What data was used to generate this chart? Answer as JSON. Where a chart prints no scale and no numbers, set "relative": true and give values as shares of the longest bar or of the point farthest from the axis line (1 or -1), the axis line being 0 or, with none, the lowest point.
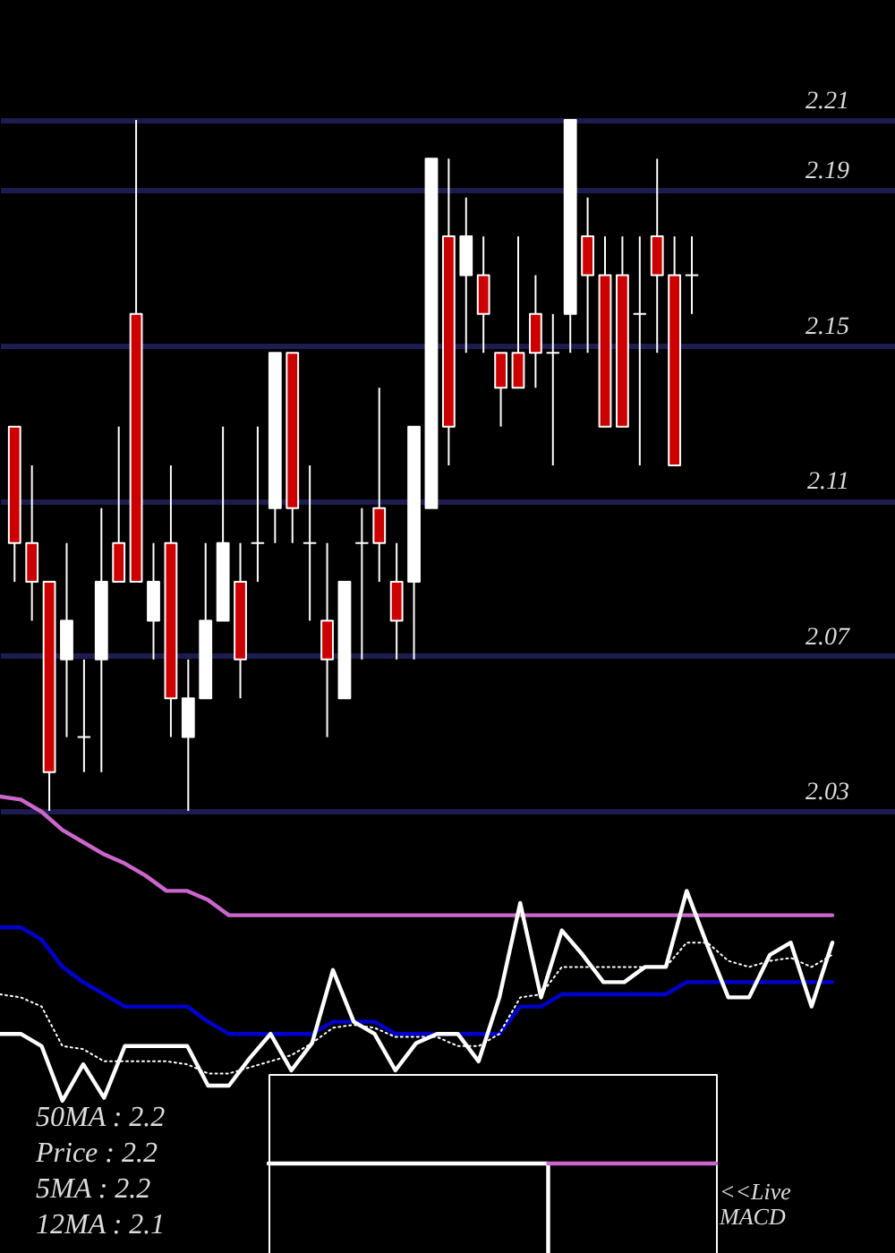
{
  "chart_data": [
    {
      "type": "candlestick",
      "categories": [
        null,
        null,
        null,
        null,
        null,
        null,
        null,
        null,
        null,
        null,
        null,
        null,
        null,
        null,
        null,
        null,
        null,
        null,
        null,
        null,
        null,
        null,
        null,
        null,
        null,
        null,
        null,
        null,
        null,
        null,
        null,
        null,
        null,
        null,
        null,
        null,
        null,
        null,
        null,
        null
      ],
      "ohlc": [
        [
          2.129,
          2.129,
          2.089,
          2.099
        ],
        [
          2.099,
          2.119,
          2.079,
          2.089
        ],
        [
          2.089,
          2.089,
          2.03,
          2.04
        ],
        [
          2.069,
          2.099,
          2.049,
          2.079
        ],
        [
          2.049,
          2.069,
          2.04,
          2.049
        ],
        [
          2.069,
          2.108,
          2.04,
          2.089
        ],
        [
          2.099,
          2.129,
          2.089,
          2.089
        ],
        [
          2.158,
          2.208,
          2.089,
          2.089
        ],
        [
          2.079,
          2.099,
          2.069,
          2.089
        ],
        [
          2.099,
          2.119,
          2.049,
          2.059
        ],
        [
          2.049,
          2.069,
          2.03,
          2.059
        ],
        [
          2.059,
          2.099,
          2.059,
          2.079
        ],
        [
          2.079,
          2.129,
          2.079,
          2.099
        ],
        [
          2.089,
          2.099,
          2.059,
          2.069
        ],
        [
          2.099,
          2.129,
          2.089,
          2.099
        ],
        [
          2.108,
          2.148,
          2.099,
          2.148
        ],
        [
          2.148,
          2.148,
          2.099,
          2.108
        ],
        [
          2.099,
          2.119,
          2.079,
          2.099
        ],
        [
          2.079,
          2.099,
          2.049,
          2.069
        ],
        [
          2.059,
          2.089,
          2.059,
          2.089
        ],
        [
          2.099,
          2.108,
          2.069,
          2.099
        ],
        [
          2.108,
          2.139,
          2.089,
          2.099
        ],
        [
          2.089,
          2.099,
          2.069,
          2.079
        ],
        [
          2.089,
          2.129,
          2.069,
          2.129
        ],
        [
          2.108,
          2.198,
          2.108,
          2.198
        ],
        [
          2.178,
          2.198,
          2.119,
          2.129
        ],
        [
          2.168,
          2.188,
          2.148,
          2.178
        ],
        [
          2.168,
          2.178,
          2.148,
          2.158
        ],
        [
          2.148,
          2.148,
          2.129,
          2.139
        ],
        [
          2.148,
          2.178,
          2.139,
          2.139
        ],
        [
          2.158,
          2.168,
          2.139,
          2.148
        ],
        [
          2.148,
          2.158,
          2.119,
          2.148
        ],
        [
          2.158,
          2.208,
          2.148,
          2.208
        ],
        [
          2.178,
          2.188,
          2.148,
          2.168
        ],
        [
          2.168,
          2.178,
          2.129,
          2.129
        ],
        [
          2.168,
          2.178,
          2.129,
          2.129
        ],
        [
          2.158,
          2.178,
          2.119,
          2.158
        ],
        [
          2.178,
          2.198,
          2.148,
          2.168
        ],
        [
          2.168,
          2.178,
          2.119,
          2.119
        ],
        [
          2.168,
          2.178,
          2.158,
          2.168
        ]
      ],
      "colors": [
        "#cc0000",
        "#cc0000",
        "#cc0000",
        "#ffffff",
        "#ffffff",
        "#ffffff",
        "#cc0000",
        "#cc0000",
        "#ffffff",
        "#cc0000",
        "#ffffff",
        "#ffffff",
        "#ffffff",
        "#cc0000",
        "#ffffff",
        "#ffffff",
        "#cc0000",
        "#ffffff",
        "#cc0000",
        "#ffffff",
        "#ffffff",
        "#cc0000",
        "#cc0000",
        "#ffffff",
        "#ffffff",
        "#cc0000",
        "#ffffff",
        "#cc0000",
        "#cc0000",
        "#cc0000",
        "#cc0000",
        "#ffffff",
        "#ffffff",
        "#cc0000",
        "#cc0000",
        "#cc0000",
        "#ffffff",
        "#cc0000",
        "#cc0000",
        "#ffffff"
      ],
      "ylim": [
        2.03,
        2.208
      ],
      "yticks": [
        2.03,
        2.07,
        2.11,
        2.15,
        2.19,
        {
          "value": 2.208,
          "label": "2.21"
        }
      ],
      "grid": "y",
      "tick_labels": "y"
    },
    {
      "type": "line",
      "relative": true,
      "categories": [
        null,
        null,
        null,
        null,
        null,
        null,
        null,
        null,
        null,
        null,
        null,
        null,
        null,
        null,
        null,
        null,
        null,
        null,
        null,
        null,
        null,
        null,
        null,
        null,
        null,
        null,
        null,
        null,
        null,
        null,
        null,
        null,
        null,
        null,
        null,
        null,
        null,
        null,
        null,
        null,
        null
      ],
      "series": [
        {
          "color": "#cc66cc",
          "values": [
            1,
            0.99,
            0.95,
            0.89,
            0.85,
            0.81,
            0.78,
            0.74,
            0.69,
            0.69,
            0.66,
            0.61,
            0.61,
            0.61,
            0.61,
            0.61,
            0.61,
            0.61,
            0.61,
            0.61,
            0.61,
            0.61,
            0.61,
            0.61,
            0.61,
            0.61,
            0.61,
            0.61,
            0.61,
            0.61,
            0.61,
            0.61,
            0.61,
            0.61,
            0.61,
            0.61,
            0.61,
            0.61,
            0.61,
            0.61,
            0.61
          ]
        },
        {
          "color": "#0000cc",
          "values": [
            0.57,
            0.57,
            0.53,
            0.44,
            0.39,
            0.35,
            0.31,
            0.31,
            0.31,
            0.31,
            0.26,
            0.22,
            0.22,
            0.22,
            0.22,
            0.22,
            0.26,
            0.26,
            0.26,
            0.22,
            0.22,
            0.22,
            0.22,
            0.22,
            0.22,
            0.31,
            0.31,
            0.35,
            0.35,
            0.35,
            0.35,
            0.35,
            0.35,
            0.39,
            0.39,
            0.39,
            0.39,
            0.39,
            0.39,
            0.39,
            0.39
          ]
        },
        {
          "color": "#ffffff",
          "line_style": "dotted",
          "values": [
            0.35,
            0.34,
            0.31,
            0.18,
            0.17,
            0.13,
            0.13,
            0.13,
            0.13,
            0.12,
            0.09,
            0.09,
            0.11,
            0.13,
            0.15,
            0.19,
            0.24,
            0.25,
            0.24,
            0.21,
            0.21,
            0.21,
            0.18,
            0.18,
            0.22,
            0.34,
            0.35,
            0.44,
            0.44,
            0.44,
            0.44,
            0.44,
            0.44,
            0.52,
            0.52,
            0.46,
            0.44,
            0.46,
            0.47,
            0.44,
            0.48
          ]
        },
        {
          "color": "#ffffff",
          "values": [
            0.22,
            0.22,
            0.18,
            0,
            0.12,
            0.01,
            0.18,
            0.18,
            0.18,
            0.18,
            0.05,
            0.05,
            0.14,
            0.22,
            0.1,
            0.19,
            0.43,
            0.26,
            0.22,
            0.1,
            0.19,
            0.22,
            0.22,
            0.13,
            0.34,
            0.65,
            0.34,
            0.56,
            0.48,
            0.39,
            0.39,
            0.44,
            0.44,
            0.69,
            0.51,
            0.34,
            0.34,
            0.48,
            0.52,
            0.31,
            0.52
          ]
        }
      ],
      "annotations": [
        "50MA : 2.2",
        "Price : 2.2",
        "5MA : 2.2",
        "12MA : 2.1"
      ]
    },
    {
      "type": "line",
      "relative": true,
      "categories": [
        null,
        null,
        null,
        null,
        null,
        null,
        null,
        null,
        null
      ],
      "series": [
        {
          "type": "step",
          "color": "#ffffff",
          "values": [
            1,
            1,
            1,
            1,
            1,
            0,
            null,
            null,
            null
          ]
        },
        {
          "color": "#cc66cc",
          "values": [
            null,
            null,
            null,
            null,
            null,
            1,
            1,
            1,
            1
          ]
        }
      ],
      "annotations": [
        "<<Live",
        "MACD"
      ]
    }
  ]
}
